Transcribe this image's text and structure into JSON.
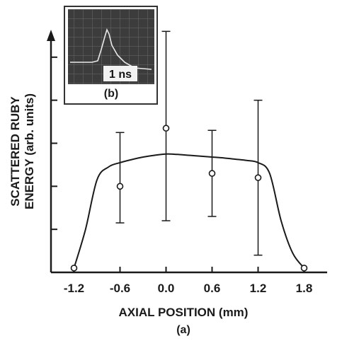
{
  "chart_data": {
    "type": "scatter",
    "title": "",
    "xlabel": "AXIAL POSITION (mm)",
    "ylabel_line1": "SCATTERED RUBY",
    "ylabel_line2": "ENERGY (arb. units)",
    "panel_label": "(a)",
    "x_ticks": [
      "-1.2",
      "-0.6",
      "0.0",
      "0.6",
      "1.2",
      "1.8"
    ],
    "x_tick_values": [
      -1.2,
      -0.6,
      0.0,
      0.6,
      1.2,
      1.8
    ],
    "xlim": [
      -1.5,
      2.1
    ],
    "ylim": [
      0,
      6
    ],
    "y_ticks": [
      1,
      2,
      3,
      4,
      5
    ],
    "y_tick_labels": false,
    "grid": false,
    "series": [
      {
        "points": [
          {
            "x": -1.2,
            "y": 0.1,
            "err_low": 0.1,
            "err_high": 0.1
          },
          {
            "x": -0.6,
            "y": 2.0,
            "err_low": 1.15,
            "err_high": 3.25
          },
          {
            "x": 0.0,
            "y": 3.35,
            "err_low": 1.2,
            "err_high": 5.6
          },
          {
            "x": 0.6,
            "y": 2.3,
            "err_low": 1.3,
            "err_high": 3.3
          },
          {
            "x": 1.2,
            "y": 2.2,
            "err_low": 0.4,
            "err_high": 4.0
          },
          {
            "x": 1.8,
            "y": 0.1,
            "err_low": 0.1,
            "err_high": 0.1
          }
        ]
      }
    ],
    "fit_curve": {
      "x": [
        -1.2,
        -1.05,
        -0.9,
        -0.75,
        -0.6,
        -0.45,
        -0.3,
        -0.15,
        0.0,
        0.15,
        0.3,
        0.45,
        0.6,
        0.75,
        0.9,
        1.05,
        1.2,
        1.35,
        1.5,
        1.65,
        1.8
      ],
      "y": [
        0.1,
        1.0,
        2.15,
        2.45,
        2.55,
        2.62,
        2.68,
        2.72,
        2.75,
        2.74,
        2.72,
        2.7,
        2.68,
        2.66,
        2.63,
        2.6,
        2.55,
        2.3,
        1.2,
        0.45,
        0.1
      ]
    },
    "inset": {
      "panel_label": "(b)",
      "scale_text": "1 ns"
    }
  }
}
